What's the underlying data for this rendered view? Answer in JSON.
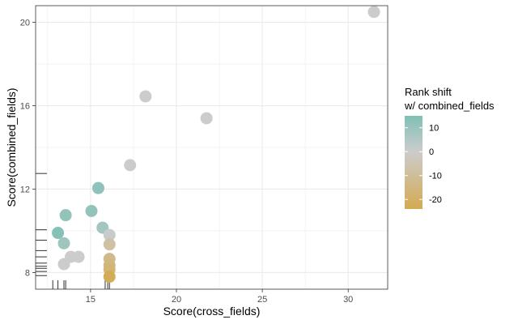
{
  "chart_data": {
    "type": "scatter",
    "xlabel": "Score(cross_fields)",
    "ylabel": "Score(combined_fields)",
    "xlim": [
      11.8,
      32.3
    ],
    "ylim": [
      7.2,
      20.8
    ],
    "x_ticks": [
      15,
      20,
      25,
      30
    ],
    "y_ticks": [
      8,
      12,
      16,
      20
    ],
    "grid": true,
    "points": [
      {
        "x": 31.5,
        "y": 20.5,
        "shift": 0
      },
      {
        "x": 18.2,
        "y": 16.45,
        "shift": 0
      },
      {
        "x": 21.75,
        "y": 15.4,
        "shift": 0
      },
      {
        "x": 17.3,
        "y": 13.15,
        "shift": 0
      },
      {
        "x": 15.45,
        "y": 12.05,
        "shift": 12
      },
      {
        "x": 15.05,
        "y": 10.95,
        "shift": 11
      },
      {
        "x": 13.55,
        "y": 10.75,
        "shift": 11
      },
      {
        "x": 15.7,
        "y": 10.15,
        "shift": 8
      },
      {
        "x": 13.1,
        "y": 9.9,
        "shift": 14
      },
      {
        "x": 16.1,
        "y": 9.8,
        "shift": 1
      },
      {
        "x": 13.45,
        "y": 9.4,
        "shift": 9
      },
      {
        "x": 16.1,
        "y": 9.35,
        "shift": -8
      },
      {
        "x": 13.85,
        "y": 8.75,
        "shift": 0
      },
      {
        "x": 14.3,
        "y": 8.75,
        "shift": 0
      },
      {
        "x": 16.1,
        "y": 8.65,
        "shift": -13
      },
      {
        "x": 13.45,
        "y": 8.4,
        "shift": 0
      },
      {
        "x": 16.1,
        "y": 8.35,
        "shift": -15
      },
      {
        "x": 16.1,
        "y": 8.15,
        "shift": -17
      },
      {
        "x": 16.1,
        "y": 7.8,
        "shift": -23
      }
    ],
    "rug_x": [
      12.8,
      13.1,
      13.45,
      13.55,
      15.85,
      16.0,
      16.1
    ],
    "rug_y": [
      7.85,
      8.05,
      8.2,
      8.3,
      8.45,
      8.75,
      9.05,
      9.55,
      10.05,
      12.75
    ],
    "legend": {
      "title_line1": "Rank shift",
      "title_line2": "w/ combined_fields",
      "ticks": [
        10,
        0,
        -10,
        -20
      ],
      "range": [
        -24,
        15
      ],
      "position": "right"
    },
    "colors": {
      "high": "#80c0b5",
      "mid": "#cccccc",
      "low": "#d4aa52",
      "panel_border": "#333333",
      "grid_major": "#ebebeb",
      "rug": "#333333"
    }
  }
}
